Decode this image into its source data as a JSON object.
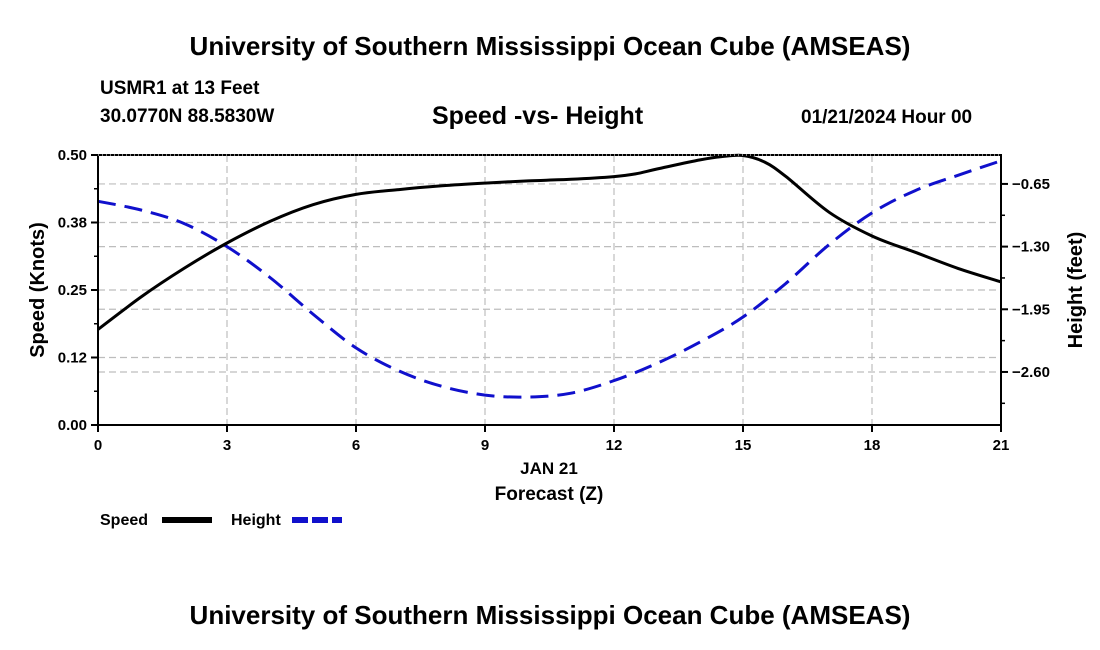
{
  "header": {
    "title_top": "University of Southern Mississippi Ocean Cube (AMSEAS)",
    "station": "USMR1 at 13 Feet",
    "coords": "30.0770N  88.5830W",
    "date": "01/21/2024 Hour 00",
    "title_bottom": "University of Southern Mississippi Ocean Cube (AMSEAS)"
  },
  "chart_data": {
    "type": "line",
    "title": "Speed -vs- Height",
    "xlabel": "Forecast (Z)",
    "date_label": "JAN 21",
    "ylabel": "Speed (Knots)",
    "y2label": "Height (feet)",
    "xlim": [
      0,
      21
    ],
    "ylim": [
      0,
      0.5
    ],
    "y2lim": [
      -3.15,
      -0.35
    ],
    "x_ticks": [
      0,
      3,
      6,
      9,
      12,
      15,
      18,
      21
    ],
    "x_tick_labels": [
      "0",
      "3",
      "6",
      "9",
      "12",
      "15",
      "18",
      "21"
    ],
    "y_ticks": [
      0,
      0.125,
      0.25,
      0.375,
      0.5
    ],
    "y_tick_labels": [
      "0.00",
      "0.12",
      "0.25",
      "0.38",
      "0.50"
    ],
    "y2_ticks": [
      -2.6,
      -1.95,
      -1.3,
      -0.65
    ],
    "y2_tick_labels": [
      "−2.60",
      "−1.95",
      "−1.30",
      "−0.65"
    ],
    "grid": true,
    "legend_position": "bottom-left",
    "series": [
      {
        "name": "Speed",
        "axis": "left",
        "color": "#000000",
        "dash": "solid",
        "x": [
          0,
          1,
          2,
          3,
          4,
          5,
          6,
          7,
          8,
          9,
          10,
          11,
          12,
          12.5,
          13,
          14,
          14.5,
          15,
          15.5,
          16,
          17,
          18,
          19,
          20,
          21
        ],
        "values": [
          0.177,
          0.237,
          0.29,
          0.337,
          0.377,
          0.408,
          0.427,
          0.436,
          0.443,
          0.448,
          0.452,
          0.455,
          0.46,
          0.465,
          0.474,
          0.491,
          0.497,
          0.499,
          0.487,
          0.46,
          0.394,
          0.35,
          0.32,
          0.29,
          0.265
        ]
      },
      {
        "name": "Height",
        "axis": "right",
        "color": "#1010cc",
        "dash": "dashed",
        "x": [
          0,
          1,
          2,
          3,
          4,
          5,
          6,
          7,
          8,
          9,
          10,
          11,
          12,
          13,
          14,
          15,
          16,
          17,
          18,
          19,
          20,
          21
        ],
        "values": [
          -0.83,
          -0.92,
          -1.06,
          -1.3,
          -1.62,
          -2.0,
          -2.35,
          -2.59,
          -2.75,
          -2.84,
          -2.86,
          -2.82,
          -2.69,
          -2.51,
          -2.29,
          -2.03,
          -1.68,
          -1.28,
          -0.95,
          -0.72,
          -0.56,
          -0.41
        ]
      }
    ]
  }
}
